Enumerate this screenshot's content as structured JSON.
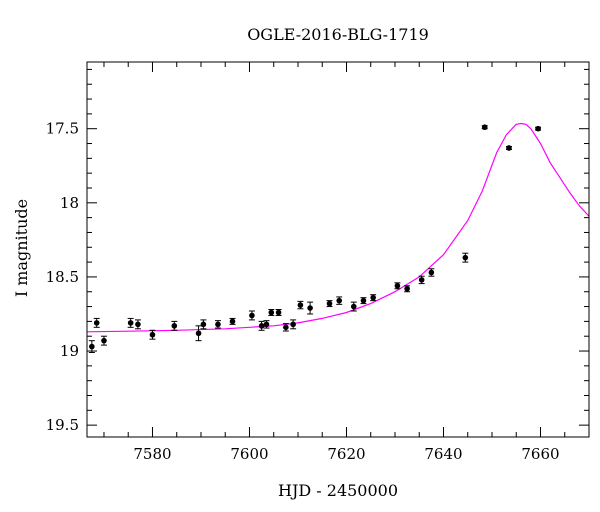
{
  "chart_data": {
    "type": "scatter",
    "title": "OGLE-2016-BLG-1719",
    "xlabel": "HJD - 2450000",
    "ylabel": "I magnitude",
    "xlim": [
      7566.5,
      7670
    ],
    "ylim": [
      19.58,
      17.05
    ],
    "y_inverted": true,
    "x_major_ticks": [
      7580,
      7600,
      7620,
      7640,
      7660
    ],
    "x_tick_labels": [
      "7580",
      "7600",
      "7620",
      "7640",
      "7660"
    ],
    "y_major_ticks": [
      17.5,
      18,
      18.5,
      19,
      19.5
    ],
    "y_tick_labels": [
      "17.5",
      "18",
      "18.5",
      "19",
      "19.5"
    ],
    "grid": false,
    "series": [
      {
        "kind": "points",
        "color": "#000000",
        "points": [
          {
            "x": 7567.5,
            "y": 18.97,
            "err": 0.04
          },
          {
            "x": 7568.5,
            "y": 18.81,
            "err": 0.03
          },
          {
            "x": 7570.0,
            "y": 18.93,
            "err": 0.03
          },
          {
            "x": 7575.5,
            "y": 18.81,
            "err": 0.03
          },
          {
            "x": 7577.0,
            "y": 18.82,
            "err": 0.03
          },
          {
            "x": 7580.0,
            "y": 18.89,
            "err": 0.03
          },
          {
            "x": 7584.5,
            "y": 18.83,
            "err": 0.03
          },
          {
            "x": 7589.5,
            "y": 18.88,
            "err": 0.05
          },
          {
            "x": 7590.5,
            "y": 18.82,
            "err": 0.03
          },
          {
            "x": 7593.5,
            "y": 18.82,
            "err": 0.025
          },
          {
            "x": 7596.5,
            "y": 18.8,
            "err": 0.02
          },
          {
            "x": 7600.5,
            "y": 18.76,
            "err": 0.03
          },
          {
            "x": 7602.5,
            "y": 18.83,
            "err": 0.03
          },
          {
            "x": 7603.5,
            "y": 18.82,
            "err": 0.025
          },
          {
            "x": 7604.5,
            "y": 18.74,
            "err": 0.02
          },
          {
            "x": 7606.0,
            "y": 18.74,
            "err": 0.02
          },
          {
            "x": 7607.5,
            "y": 18.84,
            "err": 0.025
          },
          {
            "x": 7609.0,
            "y": 18.82,
            "err": 0.03
          },
          {
            "x": 7610.5,
            "y": 18.69,
            "err": 0.025
          },
          {
            "x": 7612.5,
            "y": 18.71,
            "err": 0.04
          },
          {
            "x": 7616.5,
            "y": 18.68,
            "err": 0.02
          },
          {
            "x": 7618.5,
            "y": 18.66,
            "err": 0.025
          },
          {
            "x": 7621.5,
            "y": 18.7,
            "err": 0.03
          },
          {
            "x": 7623.5,
            "y": 18.66,
            "err": 0.02
          },
          {
            "x": 7625.5,
            "y": 18.64,
            "err": 0.02
          },
          {
            "x": 7630.5,
            "y": 18.56,
            "err": 0.02
          },
          {
            "x": 7632.5,
            "y": 18.58,
            "err": 0.02
          },
          {
            "x": 7635.5,
            "y": 18.52,
            "err": 0.025
          },
          {
            "x": 7637.5,
            "y": 18.47,
            "err": 0.025
          },
          {
            "x": 7644.5,
            "y": 18.37,
            "err": 0.03
          },
          {
            "x": 7648.5,
            "y": 17.49,
            "err": 0.01
          },
          {
            "x": 7653.5,
            "y": 17.63,
            "err": 0.01
          },
          {
            "x": 7659.5,
            "y": 17.5,
            "err": 0.01
          }
        ]
      },
      {
        "kind": "model-curve",
        "color": "#ff00ff",
        "x": [
          7566.5,
          7575,
          7585,
          7595,
          7600,
          7605,
          7610,
          7615,
          7620,
          7625,
          7630,
          7635,
          7640,
          7645,
          7648,
          7651,
          7653,
          7655,
          7656,
          7657,
          7658,
          7660,
          7662,
          7664,
          7666,
          7668,
          7670
        ],
        "y": [
          18.87,
          18.866,
          18.86,
          18.85,
          18.84,
          18.83,
          18.81,
          18.78,
          18.74,
          18.68,
          18.6,
          18.5,
          18.35,
          18.12,
          17.92,
          17.66,
          17.54,
          17.47,
          17.465,
          17.47,
          17.5,
          17.6,
          17.73,
          17.83,
          17.93,
          18.02,
          18.09
        ]
      }
    ]
  }
}
